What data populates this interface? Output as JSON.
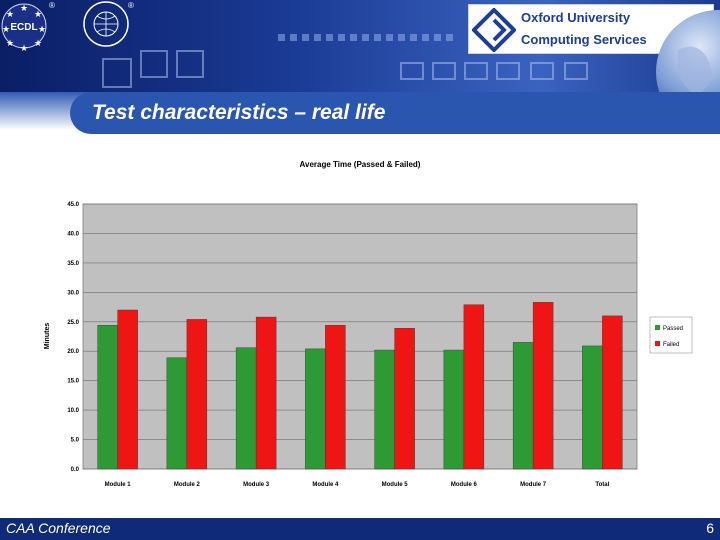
{
  "slide": {
    "title": "Test characteristics – real life",
    "footer": "CAA Conference",
    "page_number": "6"
  },
  "logos": {
    "ecdl": "ECDL",
    "registered_mark": "®",
    "intl_ring_text": "International Driving Licence"
  },
  "oucs": {
    "line1": "Oxford University",
    "line2": "Computing Services"
  },
  "colors": {
    "banner_dark": "#0f2a78",
    "title_tab": "#2a56b0",
    "plot_bg": "#c0c0c0",
    "passed": "#2e9a35",
    "failed": "#f01515"
  },
  "chart_data": {
    "type": "bar",
    "title": "Average Time (Passed & Failed)",
    "xlabel": "",
    "ylabel": "Minutes",
    "categories": [
      "Module 1",
      "Module 2",
      "Module 3",
      "Module 4",
      "Module 5",
      "Module 6",
      "Module 7",
      "Total"
    ],
    "series": [
      {
        "name": "Passed",
        "values": [
          24.4,
          18.9,
          20.6,
          20.4,
          20.2,
          20.2,
          21.5,
          20.9
        ]
      },
      {
        "name": "Failed",
        "values": [
          27.0,
          25.4,
          25.8,
          24.4,
          23.9,
          27.9,
          28.3,
          26.0
        ]
      }
    ],
    "ylim": [
      0,
      45
    ],
    "yticks": [
      "0.0",
      "5.0",
      "10.0",
      "15.0",
      "20.0",
      "25.0",
      "30.0",
      "35.0",
      "40.0",
      "45.0"
    ],
    "grid": true,
    "legend": "right"
  }
}
